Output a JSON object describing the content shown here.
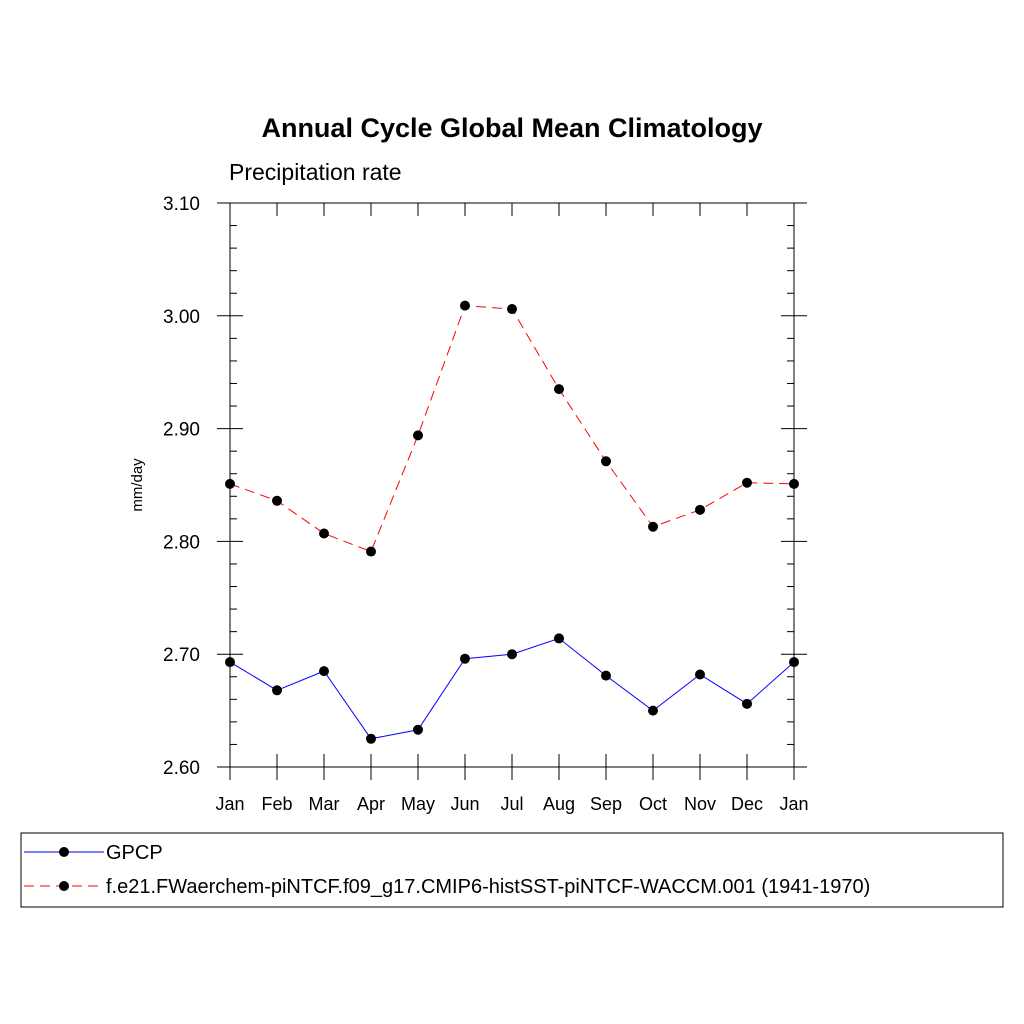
{
  "chart_data": {
    "type": "line",
    "title": "Annual Cycle Global Mean Climatology",
    "subtitle": "Precipitation rate",
    "xlabel": "",
    "ylabel": "mm/day",
    "categories": [
      "Jan",
      "Feb",
      "Mar",
      "Apr",
      "May",
      "Jun",
      "Jul",
      "Aug",
      "Sep",
      "Oct",
      "Nov",
      "Dec",
      "Jan"
    ],
    "ylim": [
      2.6,
      3.1
    ],
    "yticks": [
      "2.60",
      "2.70",
      "2.80",
      "2.90",
      "3.00",
      "3.10"
    ],
    "legend_position": "bottom",
    "grid": false,
    "series": [
      {
        "name": "GPCP",
        "color": "#0000ff",
        "line_style": "solid",
        "marker": "filled-circle",
        "values": [
          2.693,
          2.668,
          2.685,
          2.625,
          2.633,
          2.696,
          2.7,
          2.714,
          2.681,
          2.65,
          2.682,
          2.656,
          2.693
        ]
      },
      {
        "name": "f.e21.FWaerchem-piNTCF.f09_g17.CMIP6-histSST-piNTCF-WACCM.001 (1941-1970)",
        "color": "#ff0000",
        "line_style": "dashed",
        "marker": "filled-circle",
        "values": [
          2.851,
          2.836,
          2.807,
          2.791,
          2.894,
          3.009,
          3.006,
          2.935,
          2.871,
          2.813,
          2.828,
          2.852,
          2.851
        ]
      }
    ]
  }
}
